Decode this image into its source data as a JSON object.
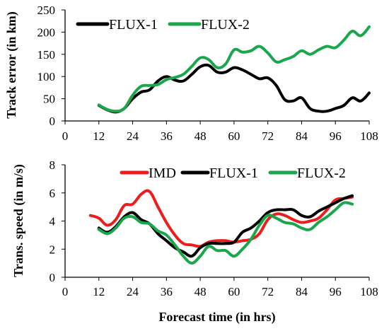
{
  "chart_data": [
    {
      "type": "line",
      "xlabel": "",
      "ylabel": "Track error (in km)",
      "xlim": [
        0,
        108
      ],
      "ylim": [
        0,
        250
      ],
      "x_ticks": [
        "0",
        "12",
        "24",
        "36",
        "48",
        "60",
        "72",
        "84",
        "96",
        "108"
      ],
      "y_ticks": [
        "0",
        "50",
        "100",
        "150",
        "200",
        "250"
      ],
      "legend": "top-left",
      "grid": false,
      "series": [
        {
          "name": "FLUX-1",
          "color": "#000000",
          "points": [
            [
              12,
              35
            ],
            [
              15,
              25
            ],
            [
              18,
              20
            ],
            [
              21,
              28
            ],
            [
              24,
              50
            ],
            [
              27,
              65
            ],
            [
              30,
              70
            ],
            [
              33,
              90
            ],
            [
              36,
              100
            ],
            [
              39,
              92
            ],
            [
              42,
              90
            ],
            [
              45,
              105
            ],
            [
              48,
              122
            ],
            [
              51,
              125
            ],
            [
              54,
              110
            ],
            [
              57,
              110
            ],
            [
              60,
              120
            ],
            [
              63,
              115
            ],
            [
              66,
              105
            ],
            [
              69,
              95
            ],
            [
              72,
              97
            ],
            [
              75,
              80
            ],
            [
              78,
              48
            ],
            [
              81,
              45
            ],
            [
              84,
              52
            ],
            [
              87,
              28
            ],
            [
              90,
              22
            ],
            [
              93,
              22
            ],
            [
              96,
              28
            ],
            [
              99,
              35
            ],
            [
              102,
              52
            ],
            [
              105,
              45
            ],
            [
              108,
              63
            ]
          ]
        },
        {
          "name": "FLUX-2",
          "color": "#1aa64a",
          "points": [
            [
              12,
              36
            ],
            [
              15,
              26
            ],
            [
              18,
              22
            ],
            [
              21,
              28
            ],
            [
              24,
              58
            ],
            [
              27,
              78
            ],
            [
              30,
              80
            ],
            [
              33,
              82
            ],
            [
              36,
              93
            ],
            [
              39,
              98
            ],
            [
              42,
              105
            ],
            [
              45,
              123
            ],
            [
              48,
              142
            ],
            [
              51,
              138
            ],
            [
              54,
              120
            ],
            [
              57,
              128
            ],
            [
              60,
              160
            ],
            [
              63,
              155
            ],
            [
              66,
              158
            ],
            [
              69,
              168
            ],
            [
              72,
              153
            ],
            [
              75,
              133
            ],
            [
              78,
              138
            ],
            [
              81,
              145
            ],
            [
              84,
              158
            ],
            [
              87,
              150
            ],
            [
              90,
              160
            ],
            [
              93,
              168
            ],
            [
              96,
              165
            ],
            [
              99,
              182
            ],
            [
              102,
              202
            ],
            [
              105,
              192
            ],
            [
              108,
              212
            ]
          ]
        }
      ]
    },
    {
      "type": "line",
      "xlabel": "Forecast time (in hrs)",
      "ylabel": "Trans. speed (in m/s)",
      "xlim": [
        0,
        108
      ],
      "ylim": [
        0,
        8
      ],
      "x_ticks": [
        "0",
        "12",
        "24",
        "36",
        "48",
        "60",
        "72",
        "84",
        "96",
        "108"
      ],
      "y_ticks": [
        "0",
        "2",
        "4",
        "6",
        "8"
      ],
      "legend": "top",
      "grid": false,
      "series": [
        {
          "name": "IMD",
          "color": "#ee1c1c",
          "points": [
            [
              9,
              4.4
            ],
            [
              12,
              4.2
            ],
            [
              15,
              3.7
            ],
            [
              18,
              4.1
            ],
            [
              21,
              5.1
            ],
            [
              24,
              5.2
            ],
            [
              27,
              5.9
            ],
            [
              30,
              6.1
            ],
            [
              33,
              5.0
            ],
            [
              36,
              3.9
            ],
            [
              39,
              3.0
            ],
            [
              42,
              2.4
            ],
            [
              45,
              2.3
            ],
            [
              48,
              2.2
            ],
            [
              51,
              2.5
            ],
            [
              54,
              2.6
            ],
            [
              57,
              2.6
            ],
            [
              60,
              2.5
            ],
            [
              63,
              2.6
            ],
            [
              66,
              2.7
            ],
            [
              69,
              3.1
            ],
            [
              72,
              4.1
            ],
            [
              75,
              4.5
            ],
            [
              78,
              4.4
            ],
            [
              81,
              4.1
            ],
            [
              84,
              3.9
            ],
            [
              87,
              4.0
            ],
            [
              90,
              4.2
            ],
            [
              93,
              4.8
            ],
            [
              96,
              5.5
            ],
            [
              99,
              5.6
            ],
            [
              102,
              5.7
            ]
          ]
        },
        {
          "name": "FLUX-1",
          "color": "#000000",
          "points": [
            [
              12,
              3.5
            ],
            [
              15,
              3.2
            ],
            [
              18,
              3.6
            ],
            [
              21,
              4.3
            ],
            [
              24,
              4.6
            ],
            [
              27,
              4.1
            ],
            [
              30,
              3.8
            ],
            [
              33,
              3.1
            ],
            [
              36,
              2.6
            ],
            [
              39,
              2.1
            ],
            [
              42,
              1.8
            ],
            [
              45,
              1.5
            ],
            [
              48,
              2.1
            ],
            [
              51,
              2.4
            ],
            [
              54,
              2.4
            ],
            [
              57,
              2.4
            ],
            [
              60,
              2.5
            ],
            [
              63,
              3.2
            ],
            [
              66,
              3.5
            ],
            [
              69,
              4.0
            ],
            [
              72,
              4.6
            ],
            [
              75,
              4.8
            ],
            [
              78,
              4.8
            ],
            [
              81,
              4.8
            ],
            [
              84,
              4.4
            ],
            [
              87,
              4.3
            ],
            [
              90,
              4.7
            ],
            [
              93,
              5.0
            ],
            [
              96,
              5.3
            ],
            [
              99,
              5.6
            ],
            [
              102,
              5.8
            ]
          ]
        },
        {
          "name": "FLUX-2",
          "color": "#1aa64a",
          "points": [
            [
              12,
              3.4
            ],
            [
              15,
              3.1
            ],
            [
              18,
              3.5
            ],
            [
              21,
              4.2
            ],
            [
              24,
              4.3
            ],
            [
              27,
              3.9
            ],
            [
              30,
              3.8
            ],
            [
              33,
              3.3
            ],
            [
              36,
              3.0
            ],
            [
              39,
              2.3
            ],
            [
              42,
              1.5
            ],
            [
              45,
              1.0
            ],
            [
              48,
              1.5
            ],
            [
              51,
              2.2
            ],
            [
              54,
              1.9
            ],
            [
              57,
              1.9
            ],
            [
              60,
              1.5
            ],
            [
              63,
              2.0
            ],
            [
              66,
              2.7
            ],
            [
              69,
              3.7
            ],
            [
              72,
              4.4
            ],
            [
              75,
              4.2
            ],
            [
              78,
              3.9
            ],
            [
              81,
              3.8
            ],
            [
              84,
              3.5
            ],
            [
              87,
              3.4
            ],
            [
              90,
              3.9
            ],
            [
              93,
              4.3
            ],
            [
              96,
              4.8
            ],
            [
              99,
              5.3
            ],
            [
              102,
              5.2
            ]
          ]
        }
      ]
    }
  ]
}
